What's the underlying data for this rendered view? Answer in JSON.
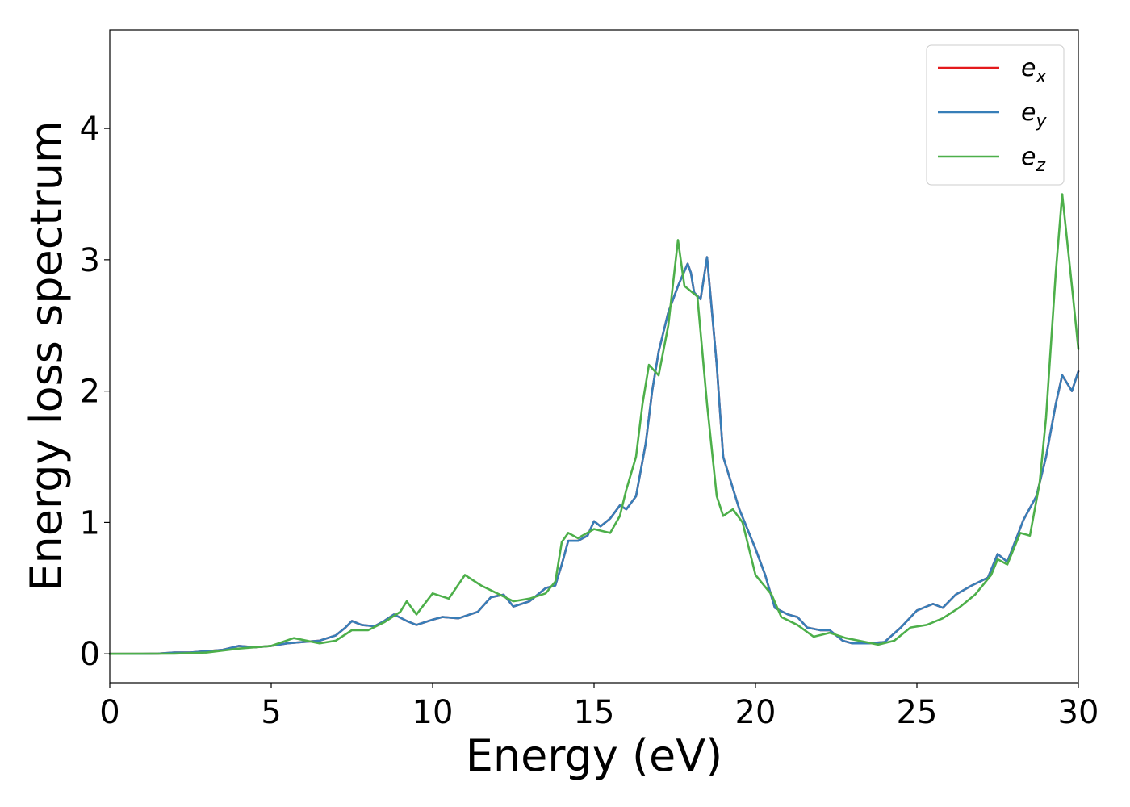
{
  "chart_data": {
    "type": "line",
    "title": "",
    "xlabel": "Energy (eV)",
    "ylabel": "Energy loss spectrum",
    "xlim": [
      0,
      30
    ],
    "ylim": [
      -0.22,
      4.75
    ],
    "xticks": [
      0,
      5,
      10,
      15,
      20,
      25,
      30
    ],
    "yticks": [
      0,
      1,
      2,
      3,
      4
    ],
    "grid": false,
    "legend": {
      "position": "top-right"
    },
    "series": [
      {
        "name": "e_x",
        "label_base": "e",
        "label_sub": "x",
        "color": "#e41a1c",
        "points": [
          [
            0,
            0
          ],
          [
            1,
            0
          ],
          [
            1.5,
            0.002
          ],
          [
            2,
            0.01
          ],
          [
            2.5,
            0.01
          ],
          [
            3,
            0.02
          ],
          [
            3.5,
            0.03
          ],
          [
            4,
            0.06
          ],
          [
            4.5,
            0.05
          ],
          [
            5,
            0.06
          ],
          [
            5.5,
            0.08
          ],
          [
            6,
            0.09
          ],
          [
            6.5,
            0.1
          ],
          [
            7,
            0.14
          ],
          [
            7.3,
            0.2
          ],
          [
            7.5,
            0.25
          ],
          [
            7.8,
            0.22
          ],
          [
            8.2,
            0.21
          ],
          [
            8.5,
            0.25
          ],
          [
            8.8,
            0.3
          ],
          [
            9.2,
            0.25
          ],
          [
            9.5,
            0.22
          ],
          [
            10,
            0.26
          ],
          [
            10.3,
            0.28
          ],
          [
            10.8,
            0.27
          ],
          [
            11.4,
            0.32
          ],
          [
            11.8,
            0.43
          ],
          [
            12.2,
            0.45
          ],
          [
            12.5,
            0.36
          ],
          [
            13,
            0.4
          ],
          [
            13.5,
            0.5
          ],
          [
            13.8,
            0.52
          ],
          [
            14,
            0.68
          ],
          [
            14.2,
            0.86
          ],
          [
            14.5,
            0.86
          ],
          [
            14.8,
            0.9
          ],
          [
            15,
            1.01
          ],
          [
            15.2,
            0.97
          ],
          [
            15.5,
            1.03
          ],
          [
            15.8,
            1.13
          ],
          [
            16,
            1.1
          ],
          [
            16.3,
            1.2
          ],
          [
            16.6,
            1.6
          ],
          [
            16.8,
            2.0
          ],
          [
            17,
            2.3
          ],
          [
            17.3,
            2.6
          ],
          [
            17.6,
            2.8
          ],
          [
            17.9,
            2.97
          ],
          [
            18,
            2.9
          ],
          [
            18.1,
            2.75
          ],
          [
            18.3,
            2.7
          ],
          [
            18.5,
            3.02
          ],
          [
            18.8,
            2.2
          ],
          [
            19,
            1.5
          ],
          [
            19.5,
            1.1
          ],
          [
            20,
            0.8
          ],
          [
            20.3,
            0.6
          ],
          [
            20.6,
            0.35
          ],
          [
            21,
            0.3
          ],
          [
            21.3,
            0.28
          ],
          [
            21.6,
            0.2
          ],
          [
            22,
            0.18
          ],
          [
            22.3,
            0.18
          ],
          [
            22.7,
            0.1
          ],
          [
            23,
            0.08
          ],
          [
            23.5,
            0.08
          ],
          [
            24,
            0.09
          ],
          [
            24.5,
            0.2
          ],
          [
            25,
            0.33
          ],
          [
            25.5,
            0.38
          ],
          [
            25.8,
            0.35
          ],
          [
            26.2,
            0.45
          ],
          [
            26.7,
            0.52
          ],
          [
            27.2,
            0.58
          ],
          [
            27.5,
            0.76
          ],
          [
            27.8,
            0.7
          ],
          [
            28.3,
            1.02
          ],
          [
            28.7,
            1.2
          ],
          [
            29,
            1.5
          ],
          [
            29.3,
            1.9
          ],
          [
            29.5,
            2.12
          ],
          [
            29.8,
            2.0
          ],
          [
            30,
            2.15
          ]
        ]
      },
      {
        "name": "e_y",
        "label_base": "e",
        "label_sub": "y",
        "color": "#377eb8",
        "points": [
          [
            0,
            0
          ],
          [
            1,
            0
          ],
          [
            1.5,
            0.002
          ],
          [
            2,
            0.01
          ],
          [
            2.5,
            0.01
          ],
          [
            3,
            0.02
          ],
          [
            3.5,
            0.03
          ],
          [
            4,
            0.06
          ],
          [
            4.5,
            0.05
          ],
          [
            5,
            0.06
          ],
          [
            5.5,
            0.08
          ],
          [
            6,
            0.09
          ],
          [
            6.5,
            0.1
          ],
          [
            7,
            0.14
          ],
          [
            7.3,
            0.2
          ],
          [
            7.5,
            0.25
          ],
          [
            7.8,
            0.22
          ],
          [
            8.2,
            0.21
          ],
          [
            8.5,
            0.25
          ],
          [
            8.8,
            0.3
          ],
          [
            9.2,
            0.25
          ],
          [
            9.5,
            0.22
          ],
          [
            10,
            0.26
          ],
          [
            10.3,
            0.28
          ],
          [
            10.8,
            0.27
          ],
          [
            11.4,
            0.32
          ],
          [
            11.8,
            0.43
          ],
          [
            12.2,
            0.45
          ],
          [
            12.5,
            0.36
          ],
          [
            13,
            0.4
          ],
          [
            13.5,
            0.5
          ],
          [
            13.8,
            0.52
          ],
          [
            14,
            0.68
          ],
          [
            14.2,
            0.86
          ],
          [
            14.5,
            0.86
          ],
          [
            14.8,
            0.9
          ],
          [
            15,
            1.01
          ],
          [
            15.2,
            0.97
          ],
          [
            15.5,
            1.03
          ],
          [
            15.8,
            1.13
          ],
          [
            16,
            1.1
          ],
          [
            16.3,
            1.2
          ],
          [
            16.6,
            1.6
          ],
          [
            16.8,
            2.0
          ],
          [
            17,
            2.3
          ],
          [
            17.3,
            2.6
          ],
          [
            17.6,
            2.8
          ],
          [
            17.9,
            2.97
          ],
          [
            18,
            2.9
          ],
          [
            18.1,
            2.75
          ],
          [
            18.3,
            2.7
          ],
          [
            18.5,
            3.02
          ],
          [
            18.8,
            2.2
          ],
          [
            19,
            1.5
          ],
          [
            19.5,
            1.1
          ],
          [
            20,
            0.8
          ],
          [
            20.3,
            0.6
          ],
          [
            20.6,
            0.35
          ],
          [
            21,
            0.3
          ],
          [
            21.3,
            0.28
          ],
          [
            21.6,
            0.2
          ],
          [
            22,
            0.18
          ],
          [
            22.3,
            0.18
          ],
          [
            22.7,
            0.1
          ],
          [
            23,
            0.08
          ],
          [
            23.5,
            0.08
          ],
          [
            24,
            0.09
          ],
          [
            24.5,
            0.2
          ],
          [
            25,
            0.33
          ],
          [
            25.5,
            0.38
          ],
          [
            25.8,
            0.35
          ],
          [
            26.2,
            0.45
          ],
          [
            26.7,
            0.52
          ],
          [
            27.2,
            0.58
          ],
          [
            27.5,
            0.76
          ],
          [
            27.8,
            0.7
          ],
          [
            28.3,
            1.02
          ],
          [
            28.7,
            1.2
          ],
          [
            29,
            1.5
          ],
          [
            29.3,
            1.9
          ],
          [
            29.5,
            2.12
          ],
          [
            29.8,
            2.0
          ],
          [
            30,
            2.15
          ]
        ]
      },
      {
        "name": "e_z",
        "label_base": "e",
        "label_sub": "z",
        "color": "#4daf4a",
        "points": [
          [
            0,
            0
          ],
          [
            2,
            0.002
          ],
          [
            3,
            0.01
          ],
          [
            4,
            0.04
          ],
          [
            5,
            0.06
          ],
          [
            5.7,
            0.12
          ],
          [
            6.5,
            0.08
          ],
          [
            7,
            0.1
          ],
          [
            7.5,
            0.18
          ],
          [
            8,
            0.18
          ],
          [
            8.5,
            0.24
          ],
          [
            9,
            0.32
          ],
          [
            9.2,
            0.4
          ],
          [
            9.5,
            0.3
          ],
          [
            10,
            0.46
          ],
          [
            10.5,
            0.42
          ],
          [
            11,
            0.6
          ],
          [
            11.5,
            0.52
          ],
          [
            12,
            0.46
          ],
          [
            12.5,
            0.4
          ],
          [
            13,
            0.42
          ],
          [
            13.5,
            0.46
          ],
          [
            13.8,
            0.55
          ],
          [
            14,
            0.85
          ],
          [
            14.2,
            0.92
          ],
          [
            14.5,
            0.88
          ],
          [
            15,
            0.95
          ],
          [
            15.5,
            0.92
          ],
          [
            15.8,
            1.05
          ],
          [
            16,
            1.25
          ],
          [
            16.3,
            1.5
          ],
          [
            16.5,
            1.9
          ],
          [
            16.7,
            2.2
          ],
          [
            17,
            2.12
          ],
          [
            17.3,
            2.5
          ],
          [
            17.6,
            3.15
          ],
          [
            17.8,
            2.8
          ],
          [
            18.2,
            2.72
          ],
          [
            18.5,
            1.9
          ],
          [
            18.8,
            1.2
          ],
          [
            19,
            1.05
          ],
          [
            19.3,
            1.1
          ],
          [
            19.6,
            1.0
          ],
          [
            20,
            0.6
          ],
          [
            20.5,
            0.45
          ],
          [
            20.8,
            0.28
          ],
          [
            21.3,
            0.22
          ],
          [
            21.8,
            0.13
          ],
          [
            22.3,
            0.16
          ],
          [
            22.8,
            0.12
          ],
          [
            23.2,
            0.1
          ],
          [
            23.8,
            0.07
          ],
          [
            24.3,
            0.1
          ],
          [
            24.8,
            0.2
          ],
          [
            25.3,
            0.22
          ],
          [
            25.8,
            0.27
          ],
          [
            26.3,
            0.35
          ],
          [
            26.8,
            0.45
          ],
          [
            27.3,
            0.6
          ],
          [
            27.5,
            0.72
          ],
          [
            27.8,
            0.68
          ],
          [
            28.2,
            0.92
          ],
          [
            28.5,
            0.9
          ],
          [
            28.8,
            1.3
          ],
          [
            29,
            1.8
          ],
          [
            29.3,
            2.9
          ],
          [
            29.5,
            3.5
          ],
          [
            29.8,
            2.8
          ],
          [
            30,
            2.32
          ]
        ]
      }
    ]
  }
}
